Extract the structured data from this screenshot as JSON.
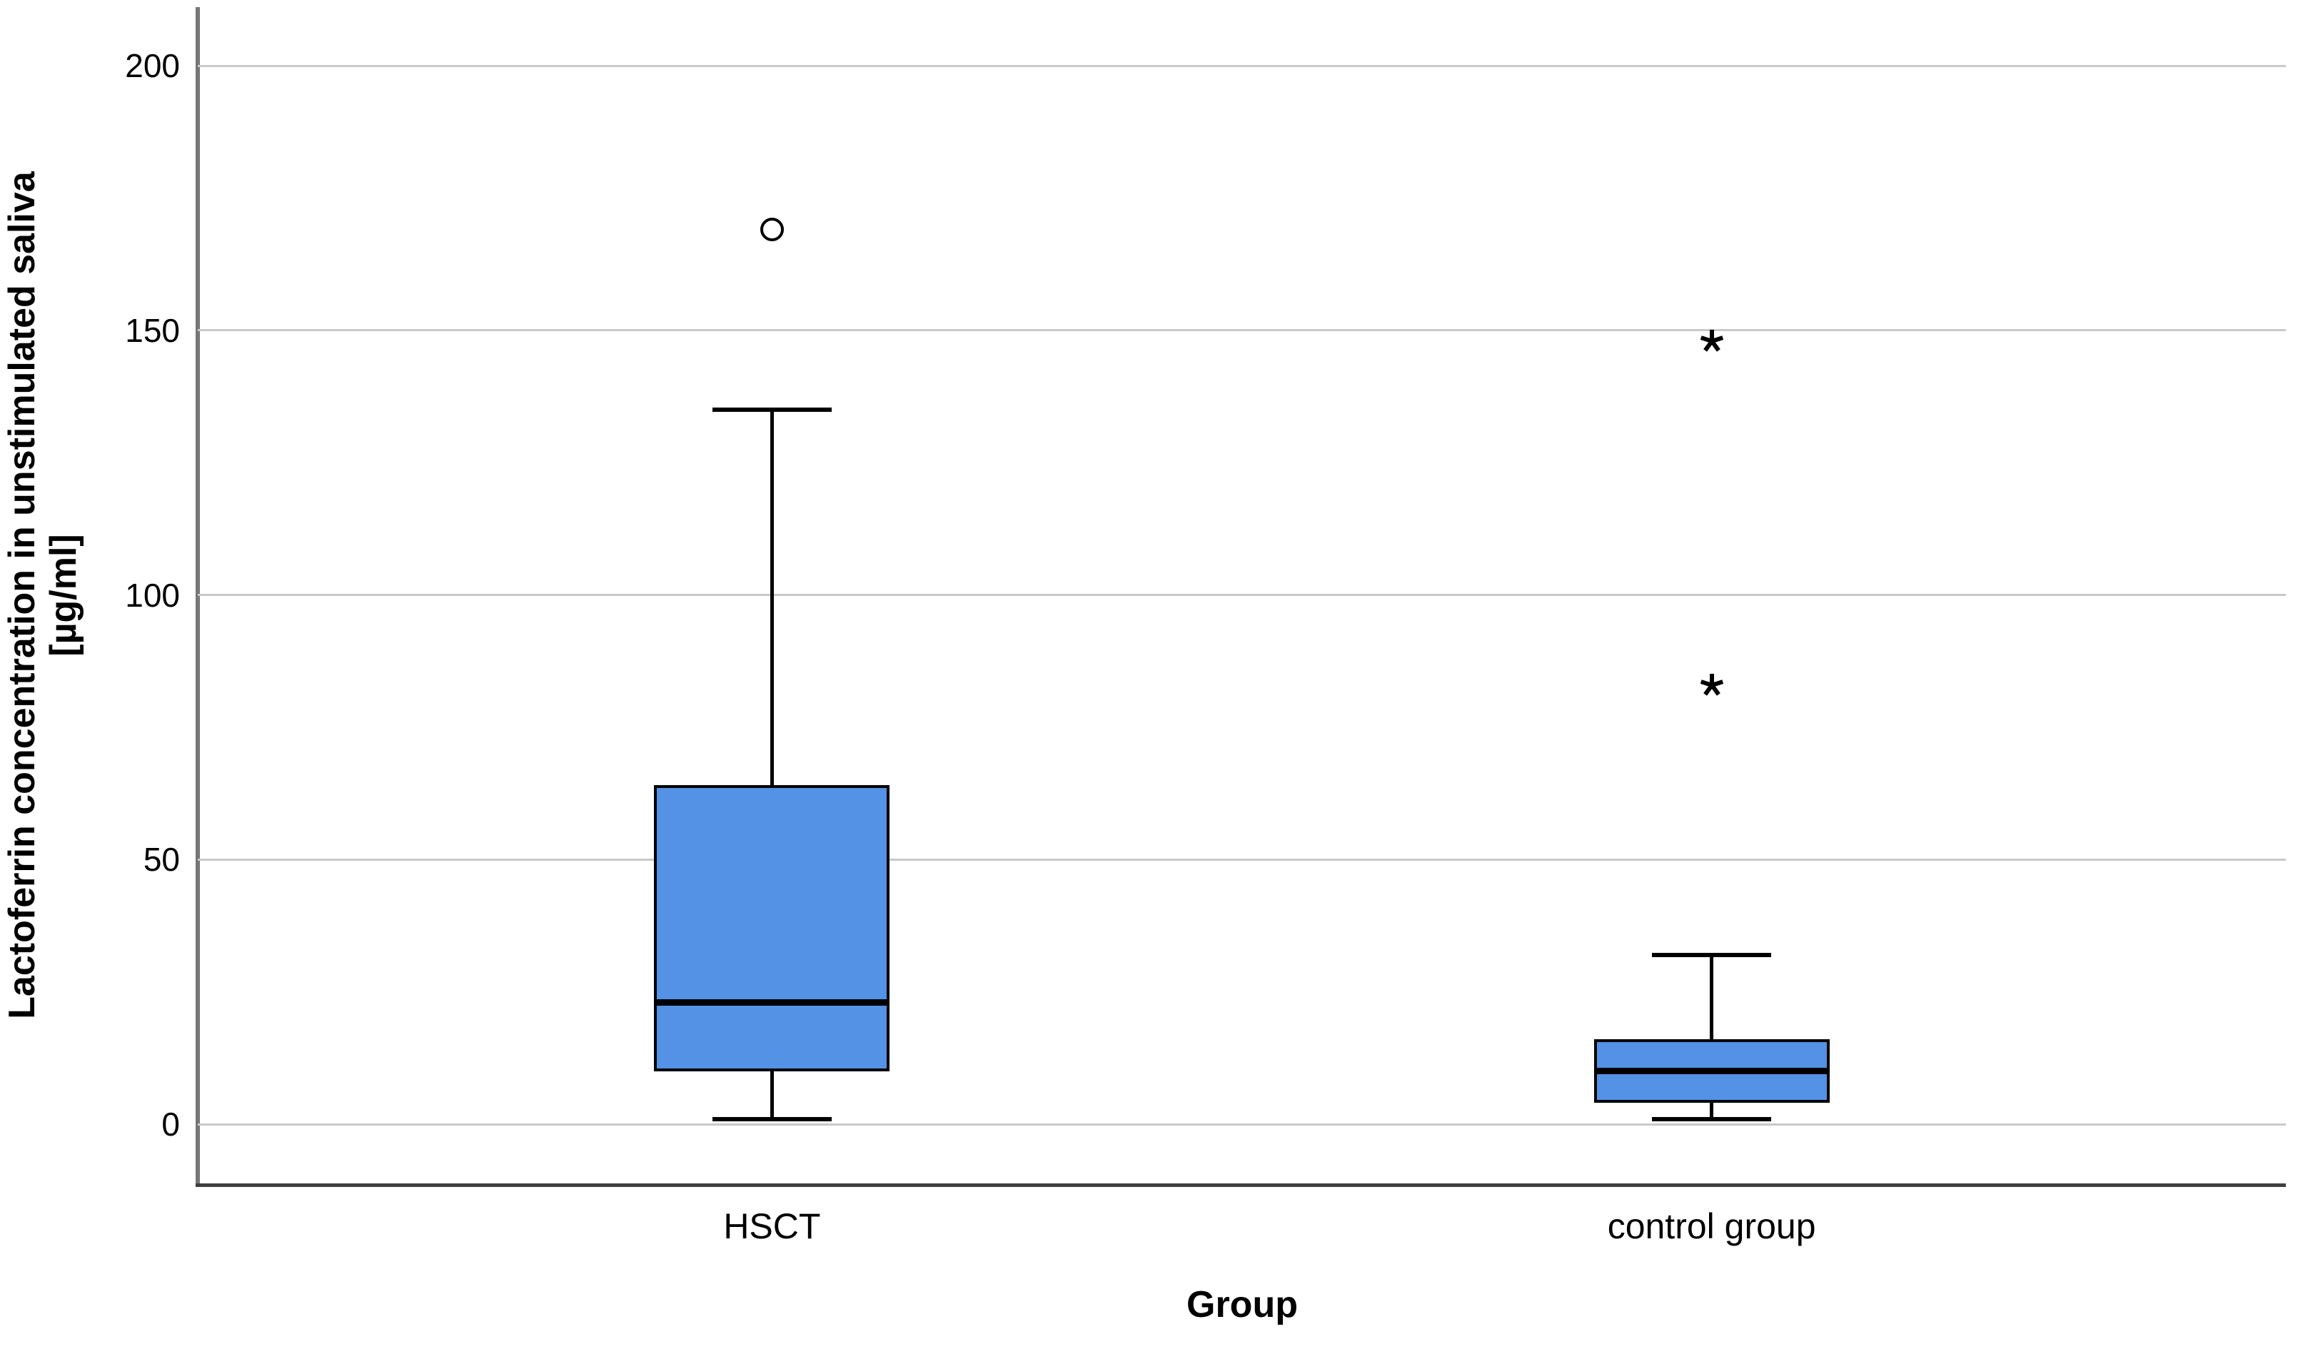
{
  "chart_data": {
    "type": "box",
    "title": "",
    "xlabel": "Group",
    "ylabel": "Lactoferrin concentration in unstimulated saliva [µg/ml]",
    "ylabel_lines": [
      "Lactoferrin concentration in unstimulated saliva",
      "[µg/ml]"
    ],
    "categories": [
      "HSCT",
      "control group"
    ],
    "yticks": [
      0,
      50,
      100,
      150,
      200
    ],
    "ylim": [
      -11,
      211
    ],
    "grid": "horizontal",
    "legend": "none",
    "boxes": [
      {
        "category": "HSCT",
        "whisker_low": 1,
        "q1": 10,
        "median": 23,
        "q3": 64,
        "whisker_high": 135,
        "outliers": [
          {
            "value": 169,
            "marker": "circle"
          }
        ]
      },
      {
        "category": "control group",
        "whisker_low": 1,
        "q1": 4,
        "median": 10,
        "q3": 16,
        "whisker_high": 32,
        "outliers": [
          {
            "value": 148,
            "marker": "asterisk"
          },
          {
            "value": 83,
            "marker": "asterisk"
          }
        ]
      }
    ],
    "colors": {
      "box_fill": "#5392E4",
      "box_border": "#000000",
      "median": "#000000",
      "whisker": "#000000",
      "gridline": "#c9c9c9",
      "y_axis": "#767676",
      "x_axis": "#3f3f3f",
      "background": "#ffffff",
      "text": "#000000"
    }
  }
}
